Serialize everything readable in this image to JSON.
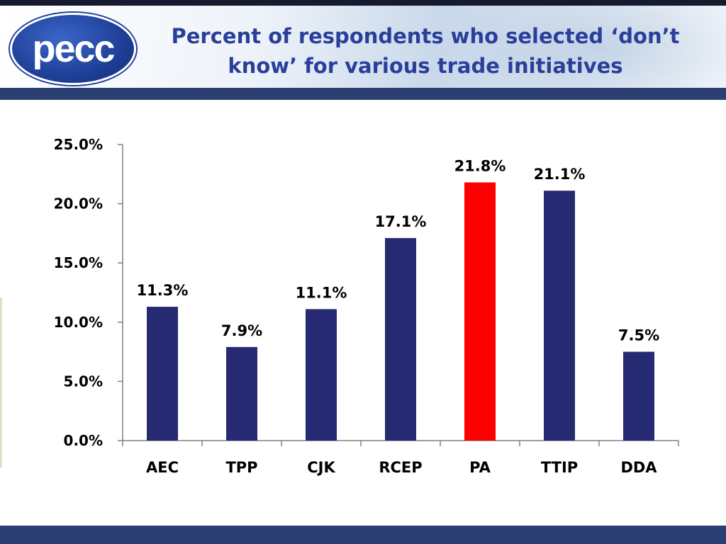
{
  "header": {
    "logo_text": "pecc",
    "title_line1": "Percent of respondents who selected ‘don’t",
    "title_line2": "know’ for various trade initiatives"
  },
  "colors": {
    "bar_default": "#262a72",
    "bar_highlight": "#ff0000",
    "title": "#2a3f9a",
    "band": "#2b3f73"
  },
  "chart_data": {
    "type": "bar",
    "title": "Percent of respondents who selected ‘don’t know’ for various trade initiatives",
    "xlabel": "",
    "ylabel": "",
    "categories": [
      "AEC",
      "TPP",
      "CJK",
      "RCEP",
      "PA",
      "TTIP",
      "DDA"
    ],
    "values": [
      11.3,
      7.9,
      11.1,
      17.1,
      21.8,
      21.1,
      7.5
    ],
    "value_labels": [
      "11.3%",
      "7.9%",
      "11.1%",
      "17.1%",
      "21.8%",
      "21.1%",
      "7.5%"
    ],
    "highlight_index": 4,
    "ylim": [
      0,
      25
    ],
    "yticks": [
      0,
      5,
      10,
      15,
      20,
      25
    ],
    "ytick_labels": [
      "0.0%",
      "5.0%",
      "10.0%",
      "15.0%",
      "20.0%",
      "25.0%"
    ],
    "grid": false,
    "legend": "none"
  }
}
